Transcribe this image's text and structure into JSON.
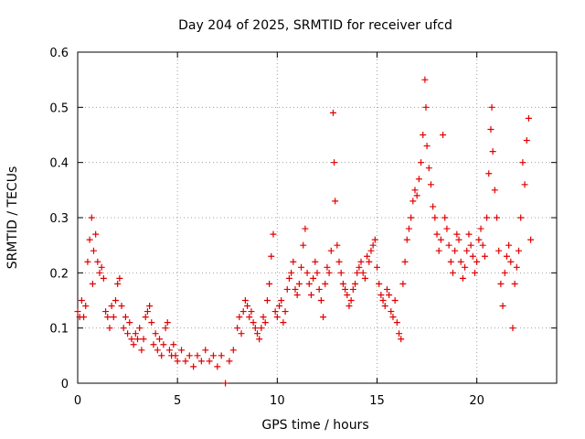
{
  "chart_data": {
    "type": "scatter",
    "title": "Day 204 of 2025, SRMTID for receiver ufcd",
    "xlabel": "GPS time / hours",
    "ylabel": "SRMTID / TECUs",
    "xlim": [
      0,
      24
    ],
    "ylim": [
      0,
      0.6
    ],
    "xticks": [
      0,
      5,
      10,
      15,
      20
    ],
    "yticks": [
      0,
      0.1,
      0.2,
      0.3,
      0.4,
      0.5,
      0.6
    ],
    "grid": true,
    "marker": "+",
    "color": "#e00000",
    "series": [
      {
        "name": "ufcd",
        "points": [
          [
            0.0,
            0.13
          ],
          [
            0.1,
            0.12
          ],
          [
            0.2,
            0.15
          ],
          [
            0.3,
            0.12
          ],
          [
            0.4,
            0.14
          ],
          [
            0.5,
            0.22
          ],
          [
            0.6,
            0.26
          ],
          [
            0.7,
            0.3
          ],
          [
            0.75,
            0.18
          ],
          [
            0.8,
            0.24
          ],
          [
            0.9,
            0.27
          ],
          [
            1.0,
            0.22
          ],
          [
            1.1,
            0.2
          ],
          [
            1.2,
            0.21
          ],
          [
            1.3,
            0.19
          ],
          [
            1.4,
            0.13
          ],
          [
            1.5,
            0.12
          ],
          [
            1.6,
            0.1
          ],
          [
            1.7,
            0.14
          ],
          [
            1.8,
            0.12
          ],
          [
            1.9,
            0.15
          ],
          [
            2.0,
            0.18
          ],
          [
            2.1,
            0.19
          ],
          [
            2.2,
            0.14
          ],
          [
            2.3,
            0.1
          ],
          [
            2.4,
            0.12
          ],
          [
            2.5,
            0.09
          ],
          [
            2.6,
            0.11
          ],
          [
            2.7,
            0.08
          ],
          [
            2.8,
            0.07
          ],
          [
            2.9,
            0.09
          ],
          [
            3.0,
            0.08
          ],
          [
            3.1,
            0.1
          ],
          [
            3.2,
            0.06
          ],
          [
            3.3,
            0.08
          ],
          [
            3.4,
            0.12
          ],
          [
            3.5,
            0.13
          ],
          [
            3.6,
            0.14
          ],
          [
            3.7,
            0.11
          ],
          [
            3.8,
            0.07
          ],
          [
            3.9,
            0.09
          ],
          [
            4.0,
            0.06
          ],
          [
            4.1,
            0.08
          ],
          [
            4.2,
            0.05
          ],
          [
            4.3,
            0.07
          ],
          [
            4.4,
            0.1
          ],
          [
            4.5,
            0.11
          ],
          [
            4.6,
            0.06
          ],
          [
            4.7,
            0.05
          ],
          [
            4.8,
            0.07
          ],
          [
            4.9,
            0.05
          ],
          [
            5.0,
            0.04
          ],
          [
            5.2,
            0.06
          ],
          [
            5.4,
            0.04
          ],
          [
            5.6,
            0.05
          ],
          [
            5.8,
            0.03
          ],
          [
            6.0,
            0.05
          ],
          [
            6.2,
            0.04
          ],
          [
            6.4,
            0.06
          ],
          [
            6.6,
            0.04
          ],
          [
            6.8,
            0.05
          ],
          [
            7.0,
            0.03
          ],
          [
            7.2,
            0.05
          ],
          [
            7.4,
            0.0
          ],
          [
            7.6,
            0.04
          ],
          [
            7.8,
            0.06
          ],
          [
            8.0,
            0.1
          ],
          [
            8.1,
            0.12
          ],
          [
            8.2,
            0.09
          ],
          [
            8.3,
            0.13
          ],
          [
            8.4,
            0.15
          ],
          [
            8.5,
            0.14
          ],
          [
            8.6,
            0.12
          ],
          [
            8.7,
            0.13
          ],
          [
            8.8,
            0.11
          ],
          [
            8.9,
            0.1
          ],
          [
            9.0,
            0.09
          ],
          [
            9.1,
            0.08
          ],
          [
            9.2,
            0.1
          ],
          [
            9.3,
            0.12
          ],
          [
            9.4,
            0.11
          ],
          [
            9.5,
            0.15
          ],
          [
            9.6,
            0.18
          ],
          [
            9.7,
            0.23
          ],
          [
            9.8,
            0.27
          ],
          [
            9.9,
            0.13
          ],
          [
            10.0,
            0.12
          ],
          [
            10.1,
            0.14
          ],
          [
            10.2,
            0.15
          ],
          [
            10.3,
            0.11
          ],
          [
            10.4,
            0.13
          ],
          [
            10.5,
            0.17
          ],
          [
            10.6,
            0.19
          ],
          [
            10.7,
            0.2
          ],
          [
            10.8,
            0.22
          ],
          [
            10.9,
            0.17
          ],
          [
            11.0,
            0.16
          ],
          [
            11.1,
            0.18
          ],
          [
            11.2,
            0.21
          ],
          [
            11.3,
            0.25
          ],
          [
            11.4,
            0.28
          ],
          [
            11.5,
            0.2
          ],
          [
            11.6,
            0.18
          ],
          [
            11.7,
            0.16
          ],
          [
            11.8,
            0.19
          ],
          [
            11.9,
            0.22
          ],
          [
            12.0,
            0.2
          ],
          [
            12.1,
            0.17
          ],
          [
            12.2,
            0.15
          ],
          [
            12.3,
            0.12
          ],
          [
            12.4,
            0.18
          ],
          [
            12.5,
            0.21
          ],
          [
            12.6,
            0.2
          ],
          [
            12.7,
            0.24
          ],
          [
            12.8,
            0.49
          ],
          [
            12.85,
            0.4
          ],
          [
            12.9,
            0.33
          ],
          [
            13.0,
            0.25
          ],
          [
            13.1,
            0.22
          ],
          [
            13.2,
            0.2
          ],
          [
            13.3,
            0.18
          ],
          [
            13.4,
            0.17
          ],
          [
            13.5,
            0.16
          ],
          [
            13.6,
            0.14
          ],
          [
            13.7,
            0.15
          ],
          [
            13.8,
            0.17
          ],
          [
            13.9,
            0.18
          ],
          [
            14.0,
            0.2
          ],
          [
            14.1,
            0.21
          ],
          [
            14.2,
            0.22
          ],
          [
            14.3,
            0.2
          ],
          [
            14.4,
            0.19
          ],
          [
            14.5,
            0.23
          ],
          [
            14.6,
            0.22
          ],
          [
            14.7,
            0.24
          ],
          [
            14.8,
            0.25
          ],
          [
            14.9,
            0.26
          ],
          [
            15.0,
            0.21
          ],
          [
            15.1,
            0.18
          ],
          [
            15.2,
            0.16
          ],
          [
            15.3,
            0.15
          ],
          [
            15.4,
            0.14
          ],
          [
            15.5,
            0.17
          ],
          [
            15.6,
            0.16
          ],
          [
            15.7,
            0.13
          ],
          [
            15.8,
            0.12
          ],
          [
            15.9,
            0.15
          ],
          [
            16.0,
            0.11
          ],
          [
            16.1,
            0.09
          ],
          [
            16.2,
            0.08
          ],
          [
            16.3,
            0.18
          ],
          [
            16.4,
            0.22
          ],
          [
            16.5,
            0.26
          ],
          [
            16.6,
            0.28
          ],
          [
            16.7,
            0.3
          ],
          [
            16.8,
            0.33
          ],
          [
            16.9,
            0.35
          ],
          [
            17.0,
            0.34
          ],
          [
            17.1,
            0.37
          ],
          [
            17.2,
            0.4
          ],
          [
            17.3,
            0.45
          ],
          [
            17.4,
            0.55
          ],
          [
            17.45,
            0.5
          ],
          [
            17.5,
            0.43
          ],
          [
            17.6,
            0.39
          ],
          [
            17.7,
            0.36
          ],
          [
            17.8,
            0.32
          ],
          [
            17.9,
            0.3
          ],
          [
            18.0,
            0.27
          ],
          [
            18.1,
            0.24
          ],
          [
            18.2,
            0.26
          ],
          [
            18.3,
            0.45
          ],
          [
            18.4,
            0.3
          ],
          [
            18.5,
            0.28
          ],
          [
            18.6,
            0.25
          ],
          [
            18.7,
            0.22
          ],
          [
            18.8,
            0.2
          ],
          [
            18.9,
            0.24
          ],
          [
            19.0,
            0.27
          ],
          [
            19.1,
            0.26
          ],
          [
            19.2,
            0.22
          ],
          [
            19.3,
            0.19
          ],
          [
            19.4,
            0.21
          ],
          [
            19.5,
            0.24
          ],
          [
            19.6,
            0.27
          ],
          [
            19.7,
            0.25
          ],
          [
            19.8,
            0.23
          ],
          [
            19.9,
            0.2
          ],
          [
            20.0,
            0.22
          ],
          [
            20.1,
            0.26
          ],
          [
            20.2,
            0.28
          ],
          [
            20.3,
            0.25
          ],
          [
            20.4,
            0.23
          ],
          [
            20.5,
            0.3
          ],
          [
            20.6,
            0.38
          ],
          [
            20.7,
            0.46
          ],
          [
            20.75,
            0.5
          ],
          [
            20.8,
            0.42
          ],
          [
            20.9,
            0.35
          ],
          [
            21.0,
            0.3
          ],
          [
            21.1,
            0.24
          ],
          [
            21.2,
            0.18
          ],
          [
            21.3,
            0.14
          ],
          [
            21.4,
            0.2
          ],
          [
            21.5,
            0.23
          ],
          [
            21.6,
            0.25
          ],
          [
            21.7,
            0.22
          ],
          [
            21.8,
            0.1
          ],
          [
            21.9,
            0.18
          ],
          [
            22.0,
            0.21
          ],
          [
            22.1,
            0.24
          ],
          [
            22.2,
            0.3
          ],
          [
            22.3,
            0.4
          ],
          [
            22.4,
            0.36
          ],
          [
            22.5,
            0.44
          ],
          [
            22.6,
            0.48
          ],
          [
            22.7,
            0.26
          ]
        ]
      }
    ]
  }
}
